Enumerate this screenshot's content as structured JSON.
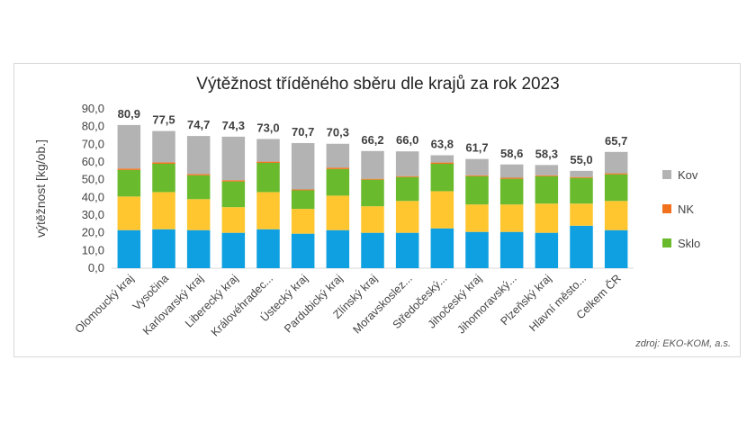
{
  "chart_data": {
    "type": "bar",
    "stacked": true,
    "title": "Výtěžnost tříděného sběru dle krajů za rok 2023",
    "ylabel": "výtěžnost [kg/ob.]",
    "xlabel": "",
    "ylim": [
      0,
      90
    ],
    "yticks": [
      "0,0",
      "10,0",
      "20,0",
      "30,0",
      "40,0",
      "50,0",
      "60,0",
      "70,0",
      "80,0",
      "90,0"
    ],
    "categories": [
      "Olomoucký kraj",
      "Vysočina",
      "Karlovarský kraj",
      "Liberecký kraj",
      "Královéhradec...",
      "Ústecký kraj",
      "Pardubický kraj",
      "Zlínský kraj",
      "Moravskoslez...",
      "Středočeský...",
      "Jihočeský kraj",
      "Jihomoravský...",
      "Plzeňský kraj",
      "Hlavní město...",
      "Celkem ČR"
    ],
    "totals": [
      "80,9",
      "77,5",
      "74,7",
      "74,3",
      "73,0",
      "70,7",
      "70,3",
      "66,2",
      "66,0",
      "63,8",
      "61,7",
      "58,6",
      "58,3",
      "55,0",
      "65,7"
    ],
    "series": [
      {
        "values": [
          21.5,
          22.0,
          21.5,
          20.0,
          22.0,
          19.5,
          21.5,
          20.0,
          20.0,
          22.5,
          20.5,
          20.5,
          20.0,
          24.0,
          21.5
        ],
        "color": "#0ea0e0"
      },
      {
        "values": [
          19.0,
          21.0,
          17.5,
          14.5,
          21.0,
          14.0,
          19.5,
          15.0,
          18.0,
          21.0,
          15.5,
          15.5,
          16.5,
          12.5,
          16.5
        ],
        "color": "#ffc62f"
      },
      {
        "name": "Sklo",
        "values": [
          15.0,
          16.0,
          13.5,
          14.5,
          16.5,
          10.5,
          15.0,
          15.0,
          13.5,
          15.5,
          16.0,
          14.5,
          15.5,
          14.5,
          15.0
        ],
        "color": "#6aba2e"
      },
      {
        "name": "NK",
        "values": [
          0.8,
          0.8,
          0.7,
          0.7,
          0.7,
          0.5,
          0.8,
          0.5,
          0.5,
          0.7,
          0.5,
          0.6,
          0.5,
          0.5,
          0.6
        ],
        "color": "#f2711c"
      },
      {
        "name": "Kov",
        "values": [
          24.6,
          17.7,
          21.5,
          24.6,
          12.8,
          26.2,
          13.5,
          15.7,
          14.0,
          4.1,
          9.2,
          7.5,
          5.8,
          3.5,
          12.1
        ],
        "color": "#b3b3b3"
      }
    ],
    "legend": [
      "Kov",
      "NK",
      "Sklo"
    ],
    "legend_position": "right",
    "grid": false
  },
  "source": "zdroj: EKO-KOM, a.s."
}
